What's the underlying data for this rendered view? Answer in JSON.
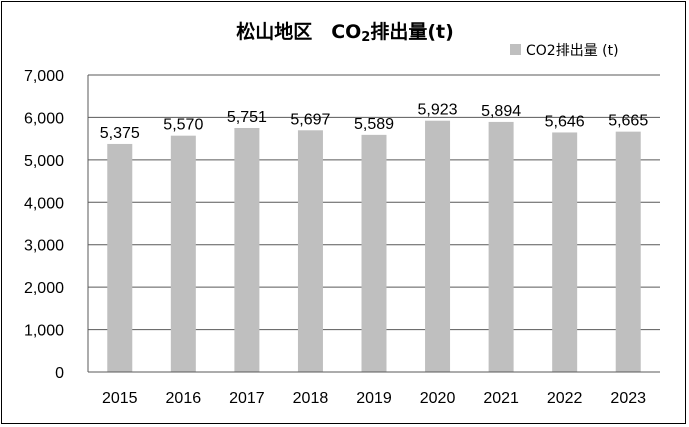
{
  "chart_data": {
    "type": "bar",
    "title_main": "松山地区　CO",
    "title_sub": "2",
    "title_tail": "排出量(t)",
    "categories": [
      "2015",
      "2016",
      "2017",
      "2018",
      "2019",
      "2020",
      "2021",
      "2022",
      "2023"
    ],
    "series": [
      {
        "name": "CO2排出量 (t)",
        "values": [
          5375,
          5570,
          5751,
          5697,
          5589,
          5923,
          5894,
          5646,
          5665
        ],
        "labels": [
          "5,375",
          "5,570",
          "5,751",
          "5,697",
          "5,589",
          "5,923",
          "5,894",
          "5,646",
          "5,665"
        ],
        "color": "#bfbfbf"
      }
    ],
    "ylim": [
      0,
      7000
    ],
    "yticks": [
      0,
      1000,
      2000,
      3000,
      4000,
      5000,
      6000,
      7000
    ],
    "ytick_labels": [
      "0",
      "1,000",
      "2,000",
      "3,000",
      "4,000",
      "5,000",
      "6,000",
      "7,000"
    ],
    "grid": true,
    "legend_position": "top-right"
  }
}
